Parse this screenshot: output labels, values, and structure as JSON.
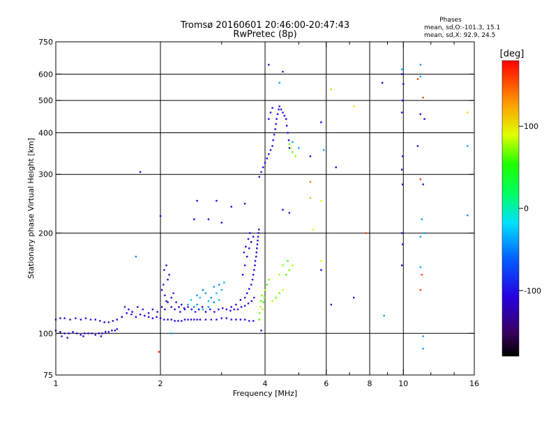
{
  "header": {
    "title": "Tromsø 20160601 20:46:00-20:47:43",
    "subtitle": "RwPretec (8p)"
  },
  "stats": {
    "title": "Phases",
    "line1": "mean, sd,O:-101.3, 15.1",
    "line2": "mean, sd,X:  92.9, 24.5"
  },
  "colorbar": {
    "label": "[deg]",
    "ticks": [
      {
        "value": 100,
        "label": "100"
      },
      {
        "value": 0,
        "label": "0"
      },
      {
        "value": -100,
        "label": "-100"
      }
    ],
    "range": [
      -180,
      180
    ]
  },
  "chart_data": {
    "type": "scatter",
    "xlabel": "Frequency [MHz]",
    "ylabel": "Stationary phase Virtual Height [km]",
    "xscale": "log",
    "yscale": "log",
    "xlim": [
      1,
      16
    ],
    "ylim": [
      75,
      750
    ],
    "x_ticks": [
      {
        "value": 1,
        "label": "1"
      },
      {
        "value": 2,
        "label": "2"
      },
      {
        "value": 4,
        "label": "4"
      },
      {
        "value": 6,
        "label": "6"
      },
      {
        "value": 8,
        "label": "8"
      },
      {
        "value": 10,
        "label": "10"
      },
      {
        "value": 16,
        "label": "16"
      }
    ],
    "x_minor_ticks": [
      3,
      5,
      7,
      9,
      12,
      14
    ],
    "x_grid": [
      2,
      4,
      6,
      8,
      10
    ],
    "y_ticks": [
      {
        "value": 75,
        "label": "75"
      },
      {
        "value": 100,
        "label": "100"
      },
      {
        "value": 200,
        "label": "200"
      },
      {
        "value": 300,
        "label": "300"
      },
      {
        "value": 400,
        "label": "400"
      },
      {
        "value": 500,
        "label": "500"
      },
      {
        "value": 600,
        "label": "600"
      },
      {
        "value": 750,
        "label": "750"
      }
    ],
    "y_grid": [
      100,
      200,
      300,
      400,
      500,
      600
    ],
    "grid": true,
    "color_encodes": "phase [deg]",
    "points": [
      [
        1.0,
        110,
        -100
      ],
      [
        1.03,
        111,
        -110
      ],
      [
        1.06,
        111,
        -105
      ],
      [
        1.1,
        110,
        -110
      ],
      [
        1.14,
        111,
        -100
      ],
      [
        1.18,
        110,
        -110
      ],
      [
        1.22,
        111,
        -105
      ],
      [
        1.26,
        110,
        -100
      ],
      [
        1.3,
        110,
        -110
      ],
      [
        1.34,
        109,
        -105
      ],
      [
        1.38,
        108,
        -110
      ],
      [
        1.42,
        108,
        -100
      ],
      [
        1.46,
        109,
        -115
      ],
      [
        1.5,
        110,
        -110
      ],
      [
        1.55,
        112,
        -105
      ],
      [
        1.6,
        115,
        -110
      ],
      [
        1.65,
        114,
        -100
      ],
      [
        1.7,
        112,
        -110
      ],
      [
        1.75,
        114,
        -105
      ],
      [
        1.8,
        113,
        -110
      ],
      [
        1.85,
        112,
        -100
      ],
      [
        1.9,
        111,
        -110
      ],
      [
        1.95,
        112,
        -105
      ],
      [
        2.0,
        111,
        -110
      ],
      [
        2.05,
        110,
        -100
      ],
      [
        2.1,
        110,
        -115
      ],
      [
        2.15,
        110,
        -110
      ],
      [
        2.2,
        109,
        -105
      ],
      [
        2.25,
        109,
        -110
      ],
      [
        2.3,
        109,
        -100
      ],
      [
        2.35,
        110,
        -110
      ],
      [
        2.4,
        110,
        -105
      ],
      [
        2.45,
        110,
        -110
      ],
      [
        2.5,
        110,
        -100
      ],
      [
        2.55,
        110,
        -110
      ],
      [
        2.6,
        110,
        -105
      ],
      [
        2.7,
        110,
        -110
      ],
      [
        2.8,
        110,
        -100
      ],
      [
        2.9,
        110,
        -110
      ],
      [
        3.0,
        111,
        -105
      ],
      [
        3.1,
        111,
        -110
      ],
      [
        3.2,
        110,
        -100
      ],
      [
        3.3,
        110,
        -110
      ],
      [
        3.4,
        110,
        -105
      ],
      [
        3.5,
        110,
        -110
      ],
      [
        3.6,
        109,
        -100
      ],
      [
        3.7,
        109,
        -110
      ],
      [
        1.0,
        102,
        -110
      ],
      [
        1.03,
        101,
        -115
      ],
      [
        1.06,
        100,
        -110
      ],
      [
        1.09,
        100,
        -105
      ],
      [
        1.12,
        101,
        -110
      ],
      [
        1.15,
        100,
        -115
      ],
      [
        1.18,
        99,
        -110
      ],
      [
        1.21,
        100,
        -105
      ],
      [
        1.24,
        100,
        -110
      ],
      [
        1.27,
        100,
        -115
      ],
      [
        1.3,
        99,
        -120
      ],
      [
        1.33,
        100,
        -110
      ],
      [
        1.36,
        100,
        -105
      ],
      [
        1.39,
        101,
        -110
      ],
      [
        1.42,
        101,
        -100
      ],
      [
        1.45,
        102,
        -110
      ],
      [
        1.48,
        102,
        -105
      ],
      [
        1.5,
        103,
        -110
      ],
      [
        1.04,
        98,
        -120
      ],
      [
        1.08,
        97,
        -115
      ],
      [
        1.2,
        98,
        -110
      ],
      [
        1.35,
        98,
        -120
      ],
      [
        1.55,
        112,
        -110
      ],
      [
        1.58,
        120,
        -100
      ],
      [
        1.62,
        118,
        -110
      ],
      [
        1.66,
        116,
        -105
      ],
      [
        1.72,
        120,
        -110
      ],
      [
        1.78,
        118,
        -100
      ],
      [
        1.85,
        115,
        -110
      ],
      [
        1.9,
        118,
        -105
      ],
      [
        1.96,
        116,
        -110
      ],
      [
        2.02,
        120,
        -110
      ],
      [
        2.06,
        118,
        -100
      ],
      [
        2.1,
        124,
        -110
      ],
      [
        2.15,
        120,
        -105
      ],
      [
        2.2,
        118,
        -110
      ],
      [
        2.28,
        116,
        -100
      ],
      [
        2.35,
        118,
        -110
      ],
      [
        2.4,
        120,
        -105
      ],
      [
        2.46,
        118,
        -110
      ],
      [
        2.52,
        116,
        -100
      ],
      [
        2.58,
        118,
        -110
      ],
      [
        2.64,
        120,
        -105
      ],
      [
        2.7,
        116,
        -110
      ],
      [
        2.78,
        118,
        -100
      ],
      [
        2.86,
        116,
        -110
      ],
      [
        2.94,
        118,
        -105
      ],
      [
        3.02,
        119,
        -110
      ],
      [
        3.1,
        118,
        -100
      ],
      [
        3.18,
        117,
        -110
      ],
      [
        3.26,
        118,
        -105
      ],
      [
        3.34,
        118,
        -110
      ],
      [
        3.42,
        120,
        -100
      ],
      [
        3.5,
        121,
        -110
      ],
      [
        3.58,
        123,
        -105
      ],
      [
        3.66,
        125,
        -110
      ],
      [
        3.72,
        128,
        -100
      ],
      [
        2.02,
        135,
        -110
      ],
      [
        2.04,
        140,
        -100
      ],
      [
        2.06,
        130,
        -110
      ],
      [
        2.08,
        125,
        -105
      ],
      [
        2.1,
        145,
        -110
      ],
      [
        2.12,
        150,
        -100
      ],
      [
        2.05,
        155,
        -110
      ],
      [
        2.08,
        160,
        -105
      ],
      [
        2.15,
        128,
        -110
      ],
      [
        2.18,
        132,
        -100
      ],
      [
        2.22,
        124,
        -110
      ],
      [
        2.26,
        120,
        -105
      ],
      [
        2.3,
        122,
        -110
      ],
      [
        2.34,
        119,
        -100
      ],
      [
        2.4,
        122,
        -40
      ],
      [
        2.45,
        126,
        -30
      ],
      [
        2.5,
        120,
        -50
      ],
      [
        2.55,
        130,
        -40
      ],
      [
        2.6,
        128,
        -30
      ],
      [
        2.65,
        135,
        -50
      ],
      [
        2.7,
        132,
        -40
      ],
      [
        2.75,
        125,
        -30
      ],
      [
        2.8,
        128,
        -50
      ],
      [
        2.85,
        138,
        -40
      ],
      [
        2.9,
        132,
        -30
      ],
      [
        2.95,
        140,
        -50
      ],
      [
        3.0,
        135,
        -40
      ],
      [
        3.05,
        142,
        -30
      ],
      [
        2.55,
        122,
        -45
      ],
      [
        2.65,
        118,
        -35
      ],
      [
        2.75,
        120,
        -40
      ],
      [
        2.85,
        124,
        -45
      ],
      [
        2.95,
        126,
        -35
      ],
      [
        3.2,
        120,
        -110
      ],
      [
        3.3,
        122,
        -100
      ],
      [
        3.4,
        126,
        -110
      ],
      [
        3.5,
        128,
        -105
      ],
      [
        3.55,
        132,
        -110
      ],
      [
        3.6,
        136,
        -100
      ],
      [
        3.65,
        140,
        -110
      ],
      [
        3.68,
        145,
        -105
      ],
      [
        3.7,
        150,
        -110
      ],
      [
        3.72,
        155,
        -100
      ],
      [
        3.74,
        160,
        -110
      ],
      [
        3.75,
        165,
        -105
      ],
      [
        3.77,
        170,
        -110
      ],
      [
        3.78,
        175,
        -100
      ],
      [
        3.79,
        180,
        -110
      ],
      [
        3.8,
        185,
        -105
      ],
      [
        3.81,
        190,
        -110
      ],
      [
        3.82,
        195,
        -100
      ],
      [
        3.83,
        200,
        -110
      ],
      [
        3.84,
        205,
        -105
      ],
      [
        3.45,
        150,
        -110
      ],
      [
        3.5,
        160,
        -100
      ],
      [
        3.55,
        170,
        -110
      ],
      [
        3.6,
        180,
        -105
      ],
      [
        3.65,
        188,
        -110
      ],
      [
        3.7,
        195,
        -100
      ],
      [
        3.62,
        200,
        -110
      ],
      [
        3.58,
        192,
        -105
      ],
      [
        3.52,
        182,
        -110
      ],
      [
        3.48,
        175,
        -100
      ],
      [
        3.85,
        110,
        60
      ],
      [
        3.86,
        115,
        70
      ],
      [
        3.88,
        120,
        80
      ],
      [
        3.9,
        125,
        60
      ],
      [
        3.92,
        130,
        70
      ],
      [
        3.94,
        118,
        80
      ],
      [
        3.96,
        124,
        60
      ],
      [
        3.98,
        128,
        70
      ],
      [
        4.0,
        135,
        80
      ],
      [
        4.05,
        140,
        60
      ],
      [
        4.1,
        145,
        70
      ],
      [
        4.2,
        125,
        80
      ],
      [
        4.3,
        128,
        60
      ],
      [
        4.4,
        132,
        70
      ],
      [
        4.5,
        135,
        80
      ],
      [
        4.6,
        150,
        60
      ],
      [
        4.7,
        155,
        70
      ],
      [
        4.8,
        160,
        80
      ],
      [
        4.65,
        165,
        60
      ],
      [
        4.5,
        160,
        70
      ],
      [
        4.4,
        150,
        80
      ],
      [
        3.85,
        295,
        -110
      ],
      [
        3.9,
        305,
        -100
      ],
      [
        3.95,
        315,
        -110
      ],
      [
        4.0,
        325,
        -105
      ],
      [
        4.05,
        335,
        -110
      ],
      [
        4.1,
        345,
        -100
      ],
      [
        4.15,
        355,
        -110
      ],
      [
        4.2,
        365,
        -105
      ],
      [
        4.22,
        380,
        -110
      ],
      [
        4.25,
        395,
        -100
      ],
      [
        4.28,
        410,
        -110
      ],
      [
        4.3,
        425,
        -105
      ],
      [
        4.32,
        440,
        -110
      ],
      [
        4.35,
        455,
        -100
      ],
      [
        4.38,
        470,
        -110
      ],
      [
        4.4,
        480,
        -105
      ],
      [
        4.45,
        470,
        -110
      ],
      [
        4.5,
        460,
        -100
      ],
      [
        4.55,
        450,
        -110
      ],
      [
        4.6,
        440,
        -105
      ],
      [
        4.62,
        420,
        -110
      ],
      [
        4.65,
        400,
        -100
      ],
      [
        4.68,
        380,
        -110
      ],
      [
        4.7,
        360,
        -105
      ],
      [
        4.1,
        440,
        -110
      ],
      [
        4.15,
        460,
        -100
      ],
      [
        4.2,
        475,
        -110
      ],
      [
        4.7,
        370,
        70
      ],
      [
        4.75,
        360,
        80
      ],
      [
        4.8,
        350,
        60
      ],
      [
        4.9,
        340,
        70
      ],
      [
        1.7,
        170,
        -50
      ],
      [
        1.75,
        305,
        -110
      ],
      [
        2.0,
        225,
        -110
      ],
      [
        2.5,
        220,
        -110
      ],
      [
        2.55,
        250,
        -110
      ],
      [
        2.75,
        220,
        -110
      ],
      [
        2.9,
        250,
        -110
      ],
      [
        3.0,
        215,
        -110
      ],
      [
        3.2,
        240,
        -110
      ],
      [
        3.5,
        245,
        -110
      ],
      [
        4.1,
        640,
        -110
      ],
      [
        4.5,
        610,
        -110
      ],
      [
        4.4,
        565,
        -40
      ],
      [
        4.8,
        375,
        -40
      ],
      [
        5.0,
        360,
        -40
      ],
      [
        5.4,
        340,
        -110
      ],
      [
        5.8,
        430,
        -110
      ],
      [
        6.4,
        315,
        -110
      ],
      [
        5.9,
        355,
        -40
      ],
      [
        4.5,
        235,
        -110
      ],
      [
        4.7,
        230,
        -110
      ],
      [
        5.4,
        285,
        140
      ],
      [
        5.4,
        255,
        120
      ],
      [
        5.8,
        250,
        90
      ],
      [
        5.5,
        205,
        90
      ],
      [
        5.8,
        165,
        90
      ],
      [
        5.8,
        155,
        -110
      ],
      [
        6.2,
        540,
        110
      ],
      [
        7.2,
        480,
        100
      ],
      [
        7.8,
        200,
        160
      ],
      [
        8.7,
        565,
        -110
      ],
      [
        6.2,
        122,
        -110
      ],
      [
        7.2,
        128,
        -110
      ],
      [
        8.8,
        113,
        -40
      ],
      [
        9.9,
        600,
        -110
      ],
      [
        9.9,
        620,
        -40
      ],
      [
        10.0,
        560,
        -110
      ],
      [
        9.95,
        500,
        -110
      ],
      [
        9.9,
        460,
        -110
      ],
      [
        9.95,
        340,
        -110
      ],
      [
        9.9,
        310,
        -110
      ],
      [
        9.95,
        280,
        -110
      ],
      [
        9.9,
        200,
        -110
      ],
      [
        9.95,
        185,
        -110
      ],
      [
        9.9,
        160,
        -110
      ],
      [
        11.0,
        365,
        -110
      ],
      [
        11.2,
        640,
        -40
      ],
      [
        11.0,
        580,
        160
      ],
      [
        11.2,
        590,
        -40
      ],
      [
        11.4,
        510,
        160
      ],
      [
        11.2,
        455,
        -110
      ],
      [
        11.5,
        440,
        -110
      ],
      [
        11.2,
        290,
        160
      ],
      [
        11.4,
        280,
        -110
      ],
      [
        11.3,
        220,
        -40
      ],
      [
        11.2,
        195,
        -40
      ],
      [
        11.5,
        200,
        -40
      ],
      [
        11.2,
        158,
        -40
      ],
      [
        11.3,
        150,
        160
      ],
      [
        11.2,
        135,
        160
      ],
      [
        11.4,
        98,
        -40
      ],
      [
        11.4,
        90,
        -40
      ],
      [
        15.3,
        460,
        100
      ],
      [
        15.3,
        365,
        -40
      ],
      [
        15.3,
        226,
        -40
      ],
      [
        1.98,
        88,
        170
      ],
      [
        2.15,
        100,
        -40
      ],
      [
        3.9,
        102,
        -110
      ]
    ]
  }
}
